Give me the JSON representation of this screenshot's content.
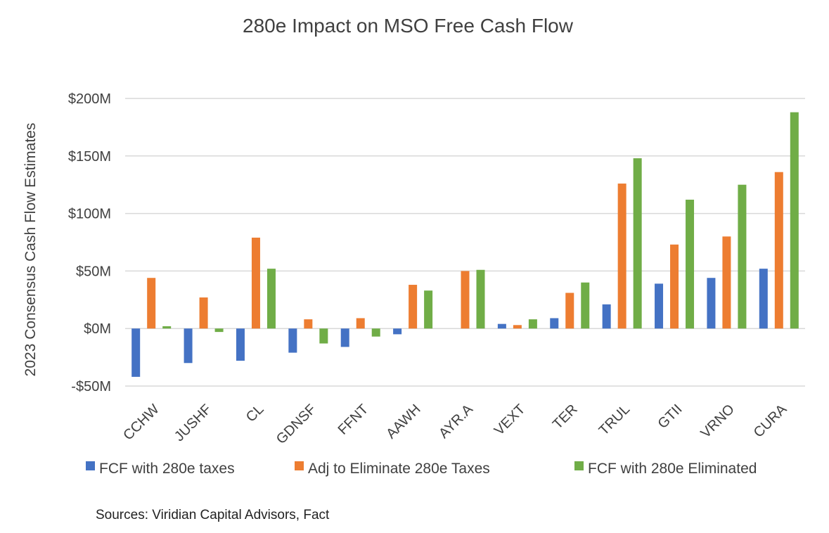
{
  "chart_data": {
    "type": "bar",
    "title": "280e Impact on MSO Free Cash Flow",
    "ylabel": "2023 Consensus Cash Flow Estimates",
    "xlabel": "",
    "ylim": [
      -50,
      200
    ],
    "yticks": [
      {
        "value": 200,
        "label": "$200M"
      },
      {
        "value": 150,
        "label": "$150M"
      },
      {
        "value": 100,
        "label": "$100M"
      },
      {
        "value": 50,
        "label": "$50M"
      },
      {
        "value": 0,
        "label": "$0M"
      },
      {
        "value": -50,
        "label": "-$50M"
      }
    ],
    "grid": true,
    "legend_position": "bottom",
    "categories": [
      "CCHW",
      "JUSHF",
      "CL",
      "GDNSF",
      "FFNT",
      "AAWH",
      "AYR.A",
      "VEXT",
      "TER",
      "TRUL",
      "GTII",
      "VRNO",
      "CURA"
    ],
    "series": [
      {
        "name": "FCF with 280e taxes",
        "color": "#4472C4",
        "values": [
          -42,
          -30,
          -28,
          -21,
          -16,
          -5,
          0,
          4,
          9,
          21,
          39,
          44,
          52
        ]
      },
      {
        "name": "Adj  to Eliminate 280e Taxes",
        "color": "#ED7D31",
        "values": [
          44,
          27,
          79,
          8,
          9,
          38,
          50,
          3,
          31,
          126,
          73,
          80,
          136
        ]
      },
      {
        "name": "FCF with 280e Eliminated",
        "color": "#70AD47",
        "values": [
          2,
          -3,
          52,
          -13,
          -7,
          33,
          51,
          8,
          40,
          148,
          112,
          125,
          188
        ]
      }
    ],
    "source": "Sources: Viridian Capital Advisors, Fact"
  }
}
